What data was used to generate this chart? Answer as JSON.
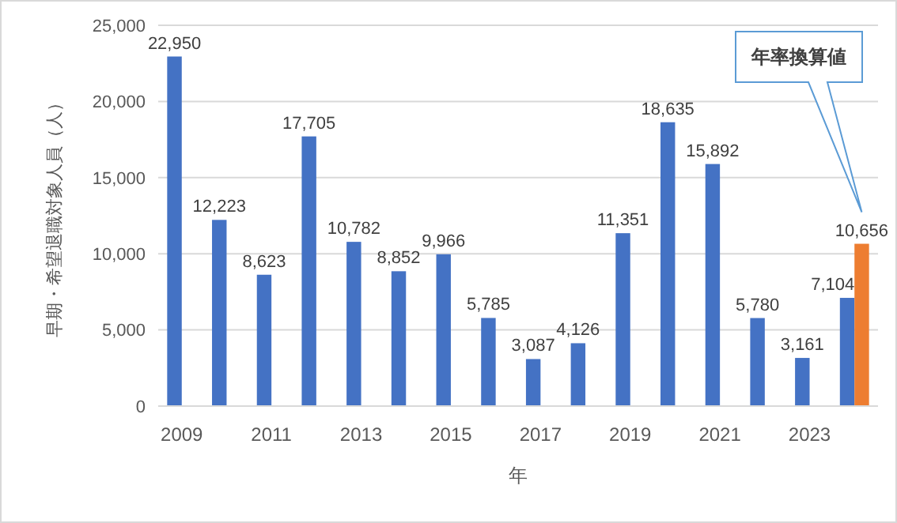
{
  "chart_data": {
    "type": "bar",
    "xlabel": "年",
    "ylabel": "早期・希望退職対象人員（人）",
    "categories": [
      "2009",
      null,
      "2011",
      null,
      "2013",
      null,
      "2015",
      null,
      "2017",
      null,
      "2019",
      null,
      "2021",
      null,
      "2023",
      null
    ],
    "series": [
      {
        "color": "#4472c4",
        "values": [
          22950,
          12223,
          8623,
          17705,
          10782,
          8852,
          9966,
          5785,
          3087,
          4126,
          11351,
          18635,
          15892,
          5780,
          3161,
          7104
        ],
        "value_labels": [
          "22,950",
          "12,223",
          "8,623",
          "17,705",
          "10,782",
          "8,852",
          "9,966",
          "5,785",
          "3,087",
          "4,126",
          "11,351",
          "18,635",
          "15,892",
          "5,780",
          "3,161",
          "7,104"
        ]
      },
      {
        "color": "#ed7d31",
        "values": [
          null,
          null,
          null,
          null,
          null,
          null,
          null,
          null,
          null,
          null,
          null,
          null,
          null,
          null,
          null,
          10656
        ],
        "value_labels": [
          null,
          null,
          null,
          null,
          null,
          null,
          null,
          null,
          null,
          null,
          null,
          null,
          null,
          null,
          null,
          "10,656"
        ]
      }
    ],
    "ylim": [
      0,
      25000
    ],
    "yticks": [
      {
        "value": 0,
        "label": "0"
      },
      {
        "value": 5000,
        "label": "5,000"
      },
      {
        "value": 10000,
        "label": "10,000"
      },
      {
        "value": 15000,
        "label": "15,000"
      },
      {
        "value": 20000,
        "label": "20,000"
      },
      {
        "value": 25000,
        "label": "25,000"
      }
    ],
    "grid": "y",
    "annotations": [
      "年率換算値"
    ]
  }
}
